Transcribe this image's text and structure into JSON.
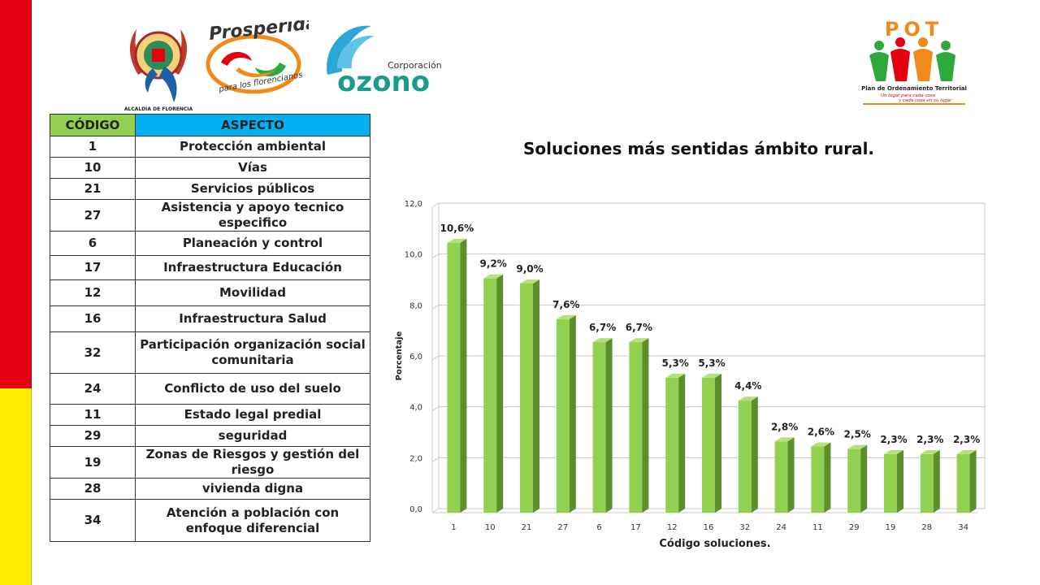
{
  "logos": {
    "alcaldia_caption": "ALCALDIA DE FLORENCIA",
    "prosperidad_title": "Prosperidad",
    "prosperidad_subtitle": "para los florencianos",
    "ozono_small": "Corporación",
    "ozono_big": "ozono",
    "pot_title": "POT",
    "pot_caption": "Plan de Ordenamiento Territorial",
    "pot_slogan_1": "Un lugar para cada cosa",
    "pot_slogan_2": "y cada cosa en su lugar"
  },
  "table": {
    "header_code": "CÓDIGO",
    "header_aspect": "ASPECTO",
    "rows": [
      {
        "code": "1",
        "aspect": "Protección ambiental"
      },
      {
        "code": "10",
        "aspect": "Vías"
      },
      {
        "code": "21",
        "aspect": "Servicios públicos"
      },
      {
        "code": "27",
        "aspect": "Asistencia y apoyo tecnico especifico"
      },
      {
        "code": "6",
        "aspect": "Planeación y control"
      },
      {
        "code": "17",
        "aspect": "Infraestructura Educación"
      },
      {
        "code": "12",
        "aspect": "Movilidad"
      },
      {
        "code": "16",
        "aspect": "Infraestructura Salud"
      },
      {
        "code": "32",
        "aspect": "Participación organización social comunitaria"
      },
      {
        "code": "24",
        "aspect": "Conflicto de uso del suelo"
      },
      {
        "code": "11",
        "aspect": "Estado legal predial"
      },
      {
        "code": "29",
        "aspect": "seguridad"
      },
      {
        "code": "19",
        "aspect": "Zonas de Riesgos y gestión del riesgo"
      },
      {
        "code": "28",
        "aspect": "vivienda digna"
      },
      {
        "code": "34",
        "aspect": "Atención a población con enfoque diferencial"
      }
    ]
  },
  "colors": {
    "bar_front": "#92d050",
    "bar_side": "#5e8e2c",
    "bar_top": "#b5e07d",
    "header_code": "#92d050",
    "header_aspect": "#00b0f0",
    "flag_red": "#e3000f",
    "flag_yellow": "#ffed00"
  },
  "chart_data": {
    "type": "bar",
    "title": "Soluciones más sentidas ámbito rural.",
    "xlabel": "Código soluciones.",
    "ylabel": "Porcentaje",
    "categories": [
      "1",
      "10",
      "21",
      "27",
      "6",
      "17",
      "12",
      "16",
      "32",
      "24",
      "11",
      "29",
      "19",
      "28",
      "34"
    ],
    "values": [
      10.6,
      9.2,
      9.0,
      7.6,
      6.7,
      6.7,
      5.3,
      5.3,
      4.4,
      2.8,
      2.6,
      2.5,
      2.3,
      2.3,
      2.3
    ],
    "data_labels": [
      "10,6%",
      "9,2%",
      "9,0%",
      "7,6%",
      "6,7%",
      "6,7%",
      "5,3%",
      "5,3%",
      "4,4%",
      "2,8%",
      "2,6%",
      "2,5%",
      "2,3%",
      "2,3%",
      "2,3%"
    ],
    "y_ticks": [
      "0,0",
      "2,0",
      "4,0",
      "6,0",
      "8,0",
      "10,0",
      "12,0"
    ],
    "ylim": [
      0,
      12
    ],
    "grid": true,
    "legend": "none"
  }
}
